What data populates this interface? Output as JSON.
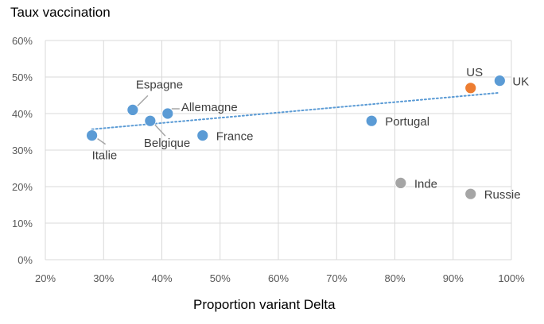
{
  "chart_data": {
    "type": "scatter",
    "title": "Taux vaccination",
    "xlabel": "Proportion variant Delta",
    "ylabel": "",
    "xlim": [
      0.2,
      1.0
    ],
    "ylim": [
      0.0,
      0.6
    ],
    "x_ticks": [
      "20%",
      "30%",
      "40%",
      "50%",
      "60%",
      "70%",
      "80%",
      "90%",
      "100%"
    ],
    "y_ticks": [
      "0%",
      "10%",
      "20%",
      "30%",
      "40%",
      "50%",
      "60%"
    ],
    "grid": "vertical and horizontal",
    "series": [
      {
        "color": "#5b9bd5",
        "points": [
          {
            "label": "Italie",
            "x": 0.28,
            "y": 0.34
          },
          {
            "label": "Espagne",
            "x": 0.35,
            "y": 0.41
          },
          {
            "label": "Belgique",
            "x": 0.38,
            "y": 0.38
          },
          {
            "label": "Allemagne",
            "x": 0.41,
            "y": 0.4
          },
          {
            "label": "France",
            "x": 0.47,
            "y": 0.34
          },
          {
            "label": "Portugal",
            "x": 0.76,
            "y": 0.38
          },
          {
            "label": "UK",
            "x": 0.98,
            "y": 0.49
          }
        ]
      },
      {
        "color": "#ed7d31",
        "points": [
          {
            "label": "US",
            "x": 0.93,
            "y": 0.47
          }
        ]
      },
      {
        "color": "#a5a5a5",
        "points": [
          {
            "label": "Inde",
            "x": 0.81,
            "y": 0.21
          },
          {
            "label": "Russie",
            "x": 0.93,
            "y": 0.18
          }
        ]
      }
    ],
    "trendline": {
      "style": "dotted",
      "color": "#5b9bd5",
      "from": {
        "x": 0.28,
        "y": 0.357
      },
      "to": {
        "x": 0.98,
        "y": 0.457
      }
    },
    "colors": {
      "grid": "#d9d9d9",
      "leader_line": "#a6a6a6"
    }
  }
}
